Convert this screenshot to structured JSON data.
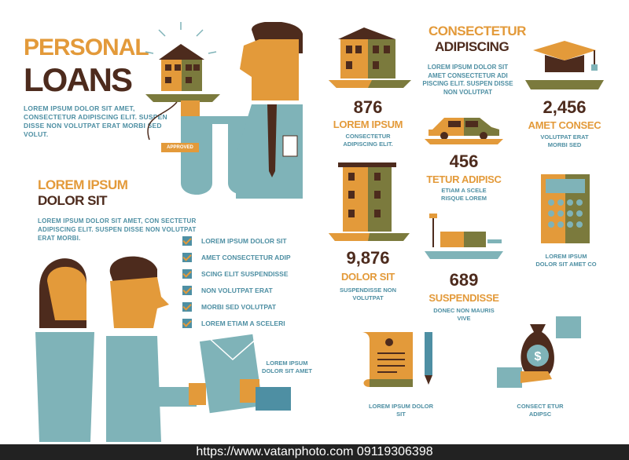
{
  "header": {
    "title_line1": "PERSONAL",
    "title_line2": "LOANS",
    "intro": "LOREM IPSUM DOLOR SIT AMET, CONSECTETUR ADIPISCING ELIT. SUSPEN DISSE NON VOLUTPAT ERAT MORBI SED VOLUT."
  },
  "approved_tag": "APPROVED",
  "section2": {
    "title_line1": "LOREM IPSUM",
    "title_line2": "DOLOR SIT",
    "body": "LOREM IPSUM DOLOR SIT AMET, CON SECTETUR ADIPISCING ELIT. SUSPEN DISSE NON VOLUTPAT ERAT MORBI."
  },
  "checklist": [
    "LOREM IPSUM DOLOR SIT",
    "AMET CONSECTETUR ADIP",
    "SCING ELIT SUSPENDISSE",
    "NON VOLUTPAT ERAT",
    "MORBI SED VOLUTPAT",
    "LOREM ETIAM A SCELERI"
  ],
  "handshake_caption": "LOREM IPSUM DOLOR SIT AMET",
  "right_header": {
    "line1": "CONSECTETUR",
    "line2": "ADIPISCING",
    "body": "LOREM IPSUM DOLOR SIT AMET CONSECTETUR ADI PISCING ELIT. SUSPEN DISSE NON VOLUTPAT"
  },
  "stats": {
    "s1": {
      "value": "876",
      "label": "LOREM IPSUM",
      "desc": "CONSECTETUR ADIPISCING ELIT."
    },
    "s2": {
      "value": "2,456",
      "label": "AMET CONSEC",
      "desc": "VOLUTPAT ERAT MORBI SED"
    },
    "s3": {
      "value": "456",
      "label": "TETUR ADIPISC",
      "desc": "ETIAM A SCELE RISQUE LOREM"
    },
    "s4": {
      "value": "9,876",
      "label": "DOLOR SIT",
      "desc": "SUSPENDISSE NON VOLUTPAT"
    },
    "s5": {
      "value": "689",
      "label": "SUSPENDISSE",
      "desc": "DONEC NON MAURIS VIVE"
    }
  },
  "captions": {
    "calculator": "LOREM IPSUM DOLOR SIT AMET CO",
    "document": "LOREM IPSUM DOLOR SIT",
    "money": "CONSECT ETUR ADIPSC"
  },
  "watermark": "https://www.vatanphoto.com   09119306398",
  "colors": {
    "orange": "#e39a3a",
    "brown": "#4d2b1d",
    "blue": "#4e8fa3",
    "teal": "#7fb3b8",
    "olive": "#7b7a3d"
  }
}
